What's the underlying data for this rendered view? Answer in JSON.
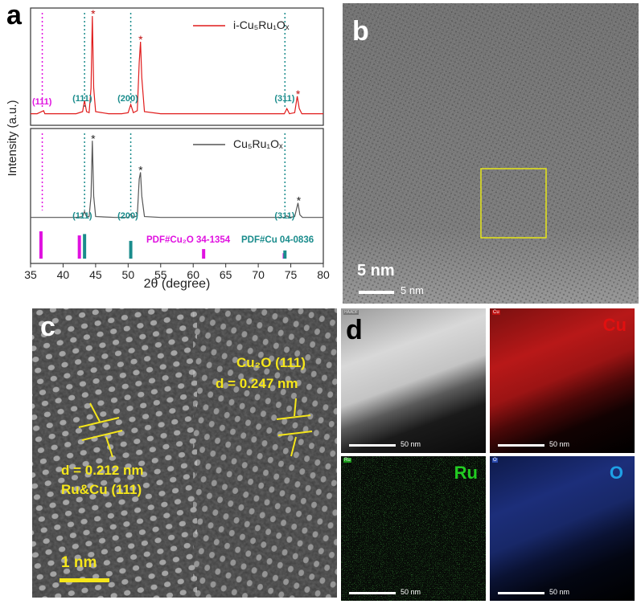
{
  "panels": {
    "a": {
      "letter": "a"
    },
    "b": {
      "letter": "b",
      "scale_label_large": "5 nm",
      "scale_label_small": "5 nm"
    },
    "c": {
      "letter": "c",
      "cu2o_label_line1": "Cu₂O (111)",
      "cu2o_label_line2": "d = 0.247 nm",
      "ru_label_line1": "d = 0.212 nm",
      "ru_label_line2": "Ru&Cu (111)",
      "scale_label": "1 nm"
    },
    "d": {
      "letter": "d",
      "maps": [
        {
          "tag": "HAADF",
          "element": "",
          "scale": "50 nm",
          "color": "#bcbcbc"
        },
        {
          "tag": "Cu",
          "element": "Cu",
          "scale": "50 nm",
          "color": "#e01010"
        },
        {
          "tag": "Ru",
          "element": "Ru",
          "scale": "50 nm",
          "color": "#22cc22"
        },
        {
          "tag": "O",
          "element": "O",
          "scale": "50 nm",
          "color": "#1ea0e6"
        }
      ]
    }
  },
  "chart_data": {
    "type": "line",
    "xlabel": "2θ (degree)",
    "ylabel": "Intensity (a.u.)",
    "xlim": [
      35,
      80
    ],
    "xticks": [
      35,
      40,
      45,
      50,
      55,
      60,
      65,
      70,
      75,
      80
    ],
    "series": [
      {
        "name": "i-Cu₅Ru₁Oₓ",
        "color": "#e01b1b",
        "points": [
          [
            35,
            0.05
          ],
          [
            36,
            0.05
          ],
          [
            37,
            0.08
          ],
          [
            37.2,
            0.05
          ],
          [
            38,
            0.05
          ],
          [
            40,
            0.05
          ],
          [
            42,
            0.05
          ],
          [
            43,
            0.07
          ],
          [
            43.3,
            0.18
          ],
          [
            43.6,
            0.07
          ],
          [
            44,
            0.06
          ],
          [
            44.3,
            0.3
          ],
          [
            44.5,
            1.0
          ],
          [
            44.7,
            0.3
          ],
          [
            45,
            0.07
          ],
          [
            47,
            0.05
          ],
          [
            49,
            0.05
          ],
          [
            50,
            0.06
          ],
          [
            50.4,
            0.14
          ],
          [
            50.8,
            0.06
          ],
          [
            51.4,
            0.08
          ],
          [
            51.7,
            0.55
          ],
          [
            51.9,
            0.75
          ],
          [
            52.1,
            0.4
          ],
          [
            52.5,
            0.07
          ],
          [
            55,
            0.05
          ],
          [
            60,
            0.05
          ],
          [
            65,
            0.05
          ],
          [
            70,
            0.05
          ],
          [
            74,
            0.05
          ],
          [
            74.4,
            0.1
          ],
          [
            74.8,
            0.05
          ],
          [
            75.6,
            0.06
          ],
          [
            76,
            0.22
          ],
          [
            76.3,
            0.1
          ],
          [
            76.7,
            0.05
          ],
          [
            80,
            0.05
          ]
        ]
      },
      {
        "name": "Cu₅Ru₁Oₓ",
        "color": "#555555",
        "points": [
          [
            35,
            0.05
          ],
          [
            37,
            0.05
          ],
          [
            40,
            0.05
          ],
          [
            42,
            0.05
          ],
          [
            43,
            0.06
          ],
          [
            43.3,
            0.12
          ],
          [
            43.6,
            0.06
          ],
          [
            44,
            0.06
          ],
          [
            44.3,
            0.3
          ],
          [
            44.5,
            0.95
          ],
          [
            44.7,
            0.3
          ],
          [
            45,
            0.06
          ],
          [
            48,
            0.05
          ],
          [
            50,
            0.05
          ],
          [
            50.4,
            0.09
          ],
          [
            50.8,
            0.05
          ],
          [
            51.4,
            0.07
          ],
          [
            51.7,
            0.5
          ],
          [
            51.9,
            0.58
          ],
          [
            52.1,
            0.3
          ],
          [
            52.5,
            0.06
          ],
          [
            55,
            0.05
          ],
          [
            60,
            0.05
          ],
          [
            65,
            0.05
          ],
          [
            70,
            0.05
          ],
          [
            74,
            0.05
          ],
          [
            74.4,
            0.07
          ],
          [
            74.8,
            0.05
          ],
          [
            75.6,
            0.06
          ],
          [
            76.1,
            0.22
          ],
          [
            76.4,
            0.08
          ],
          [
            76.8,
            0.05
          ],
          [
            80,
            0.05
          ]
        ]
      }
    ],
    "peak_markers": [
      {
        "series": 0,
        "x": 44.5,
        "symbol": "*"
      },
      {
        "series": 0,
        "x": 51.8,
        "symbol": "*"
      },
      {
        "series": 0,
        "x": 76.0,
        "symbol": "*"
      },
      {
        "series": 1,
        "x": 44.5,
        "symbol": "*"
      },
      {
        "series": 1,
        "x": 51.8,
        "symbol": "*"
      },
      {
        "series": 1,
        "x": 76.1,
        "symbol": "*"
      }
    ],
    "annotations": [
      {
        "text": "(111)",
        "color": "#e011e0",
        "panel": 0,
        "x": 37.0
      },
      {
        "text": "(111)",
        "color": "#1a8c8c",
        "panel": 0,
        "x": 43.2
      },
      {
        "text": "(200)",
        "color": "#1a8c8c",
        "panel": 0,
        "x": 50.2
      },
      {
        "text": "(311)",
        "color": "#1a8c8c",
        "panel": 0,
        "x": 74.3
      },
      {
        "text": "(111)",
        "color": "#1a8c8c",
        "panel": 1,
        "x": 43.2
      },
      {
        "text": "(200)",
        "color": "#1a8c8c",
        "panel": 1,
        "x": 50.2
      },
      {
        "text": "(311)",
        "color": "#1a8c8c",
        "panel": 1,
        "x": 74.3
      }
    ],
    "reference_lines": [
      {
        "x": 36.8,
        "color": "#e011e0"
      },
      {
        "x": 43.3,
        "color": "#1a8c8c"
      },
      {
        "x": 50.4,
        "color": "#1a8c8c"
      },
      {
        "x": 74.1,
        "color": "#1a8c8c"
      }
    ],
    "reference_bars": {
      "Cu2O": {
        "label": "PDF#Cu₂O 34-1354",
        "color": "#e011e0",
        "peaks": [
          [
            36.6,
            1.0
          ],
          [
            42.5,
            0.85
          ],
          [
            61.6,
            0.35
          ],
          [
            74.0,
            0.2
          ]
        ]
      },
      "Cu": {
        "label": "PDF#Cu 04-0836",
        "color": "#1a8c8c",
        "peaks": [
          [
            43.3,
            0.9
          ],
          [
            50.4,
            0.65
          ],
          [
            74.1,
            0.3
          ]
        ]
      }
    }
  }
}
